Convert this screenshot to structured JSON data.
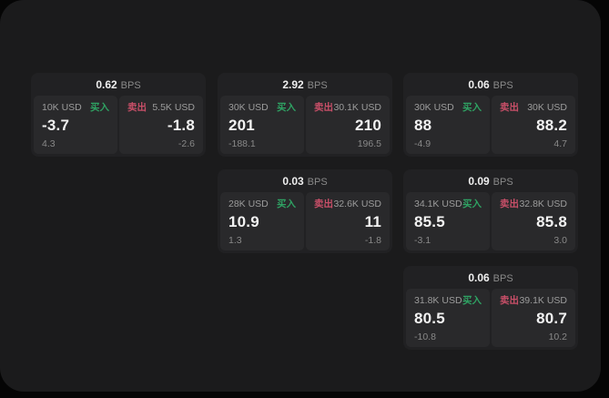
{
  "colors": {
    "buy_accent": "#2fa263",
    "sell_accent": "#c84f68",
    "surface_bg": "#1b1b1c",
    "card_bg": "#212123",
    "panel_bg": "#29292b"
  },
  "cards": [
    {
      "bps_value": "0.62",
      "bps_unit": "BPS",
      "buy": {
        "amount": "10K USD",
        "side_label": "买入",
        "value": "-3.7",
        "sub_value": "4.3"
      },
      "sell": {
        "amount": "5.5K USD",
        "side_label": "卖出",
        "value": "-1.8",
        "sub_value": "-2.6"
      }
    },
    {
      "bps_value": "2.92",
      "bps_unit": "BPS",
      "buy": {
        "amount": "30K USD",
        "side_label": "买入",
        "value": "201",
        "sub_value": "-188.1"
      },
      "sell": {
        "amount": "30.1K USD",
        "side_label": "卖出",
        "value": "210",
        "sub_value": "196.5"
      }
    },
    {
      "bps_value": "0.06",
      "bps_unit": "BPS",
      "buy": {
        "amount": "30K USD",
        "side_label": "买入",
        "value": "88",
        "sub_value": "-4.9"
      },
      "sell": {
        "amount": "30K USD",
        "side_label": "卖出",
        "value": "88.2",
        "sub_value": "4.7"
      }
    },
    {
      "bps_value": "0.03",
      "bps_unit": "BPS",
      "buy": {
        "amount": "28K USD",
        "side_label": "买入",
        "value": "10.9",
        "sub_value": "1.3"
      },
      "sell": {
        "amount": "32.6K USD",
        "side_label": "卖出",
        "value": "11",
        "sub_value": "-1.8"
      }
    },
    {
      "bps_value": "0.09",
      "bps_unit": "BPS",
      "buy": {
        "amount": "34.1K USD",
        "side_label": "买入",
        "value": "85.5",
        "sub_value": "-3.1"
      },
      "sell": {
        "amount": "32.8K USD",
        "side_label": "卖出",
        "value": "85.8",
        "sub_value": "3.0"
      }
    },
    {
      "bps_value": "0.06",
      "bps_unit": "BPS",
      "buy": {
        "amount": "31.8K USD",
        "side_label": "买入",
        "value": "80.5",
        "sub_value": "-10.8"
      },
      "sell": {
        "amount": "39.1K USD",
        "side_label": "卖出",
        "value": "80.7",
        "sub_value": "10.2"
      }
    }
  ]
}
